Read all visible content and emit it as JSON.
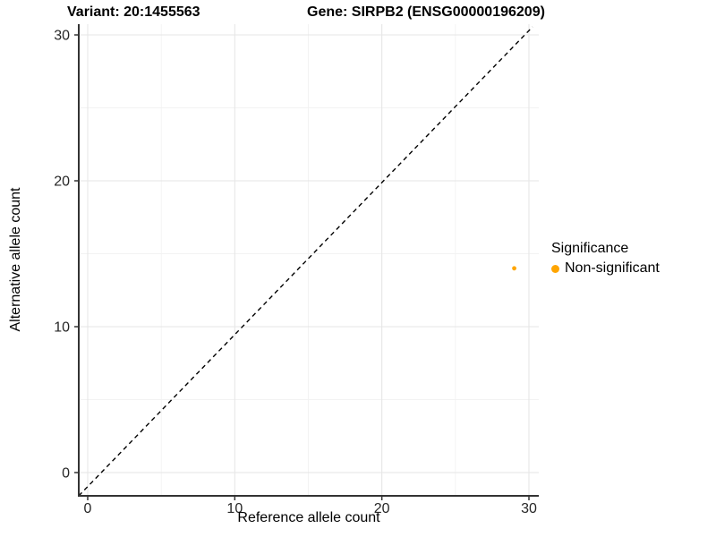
{
  "colors": {
    "background": "#FFFFFF",
    "grid_major": "#E6E6E6",
    "grid_minor": "#F2F2F2",
    "axis_line": "#333333",
    "tick_mark": "#333333",
    "tick_text": "#262626",
    "title_text": "#000000",
    "point": "#FFA500",
    "reference_line": "#000000"
  },
  "chart_data": {
    "type": "scatter",
    "titles": [
      "Variant: 20:1455563",
      "Gene: SIRPB2 (ENSG00000196209)"
    ],
    "xlabel": "Reference allele count",
    "ylabel": "Alternative allele count",
    "xticks": [
      0,
      10,
      20,
      30
    ],
    "yticks": [
      0,
      10,
      20,
      30
    ],
    "xlim": [
      -0.6,
      30.7
    ],
    "ylim": [
      -1.6,
      30.9
    ],
    "grid": "major and minor gridlines, light gray on white panel",
    "reference_line": {
      "equation": "y = x",
      "style": "dashed",
      "color": "#000000"
    },
    "series": [
      {
        "name": "Non-significant",
        "color": "#FFA500",
        "points": [
          {
            "x": 29,
            "y": 14
          }
        ]
      }
    ],
    "legend": {
      "title": "Significance",
      "position": "right",
      "entries": [
        {
          "label": "Non-significant",
          "color": "#FFA500"
        }
      ]
    }
  }
}
